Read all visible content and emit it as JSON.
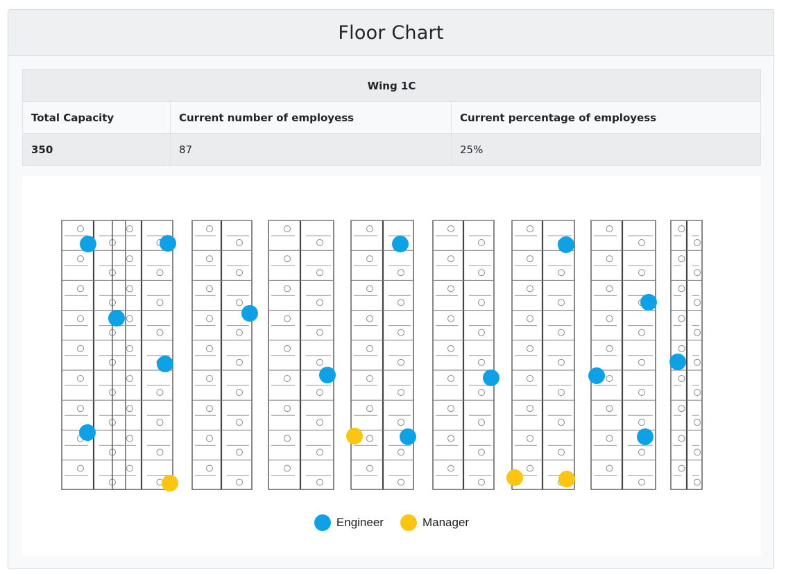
{
  "header": {
    "title": "Floor Chart"
  },
  "wing": {
    "name": "Wing 1C",
    "columns": [
      "Total Capacity",
      "Current number of employess",
      "Current percentage of employess"
    ],
    "values": [
      "350",
      "87",
      "25%"
    ]
  },
  "legend": {
    "engineer_label": "Engineer",
    "manager_label": "Manager"
  },
  "colors": {
    "engineer": "#0ea1e6",
    "manager": "#fbc512"
  }
}
